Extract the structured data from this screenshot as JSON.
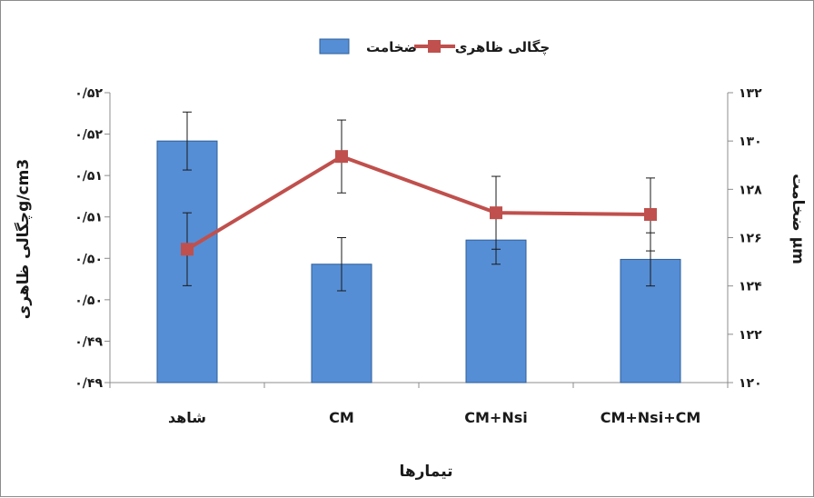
{
  "chart_data": {
    "type": "bar",
    "categories": [
      "شاهد",
      "CM",
      "CM+Nsi",
      "CM+Nsi+CM"
    ],
    "xlabel": "تیمارها",
    "y_left_label": "چگالی ظاهریg/cm3",
    "y_right_label": "ضخامت µm",
    "y_left_ticks": [
      "۰/۴۹",
      "۰/۴۹",
      "۰/۵۰",
      "۰/۵۰",
      "۰/۵۱",
      "۰/۵۱",
      "۰/۵۲",
      "۰/۵۲"
    ],
    "y_right_ticks": [
      "۱۲۰",
      "۱۲۲",
      "۱۲۴",
      "۱۲۶",
      "۱۲۸",
      "۱۳۰",
      "۱۳۲"
    ],
    "y_right_lim": [
      120,
      132
    ],
    "y_left_lim": [
      0.4875,
      0.5225
    ],
    "grid": false,
    "legend_position": "top-center",
    "series": [
      {
        "name": "ضخامت",
        "type": "bar",
        "axis": "right",
        "color": "#558ed5",
        "values": [
          130.0,
          124.9,
          125.9,
          125.1
        ],
        "error": [
          1.2,
          1.1,
          1.0,
          1.1
        ]
      },
      {
        "name": "چگالی ظاهری",
        "type": "line",
        "axis": "left",
        "color": "#c0504d",
        "values": [
          0.5036,
          0.5148,
          0.508,
          0.5078
        ],
        "error": [
          0.0044,
          0.0044,
          0.0044,
          0.0044
        ]
      }
    ]
  }
}
